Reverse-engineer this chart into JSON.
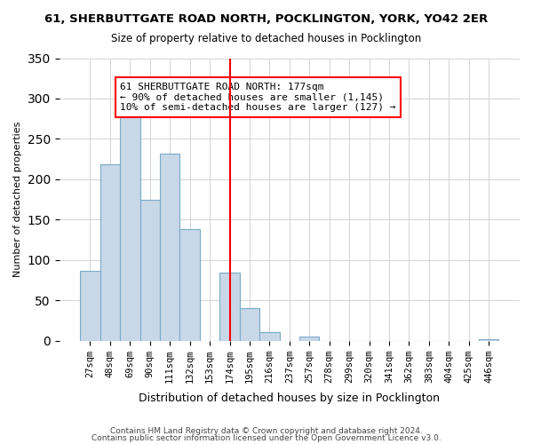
{
  "title": "61, SHERBUTTGATE ROAD NORTH, POCKLINGTON, YORK, YO42 2ER",
  "subtitle": "Size of property relative to detached houses in Pocklington",
  "xlabel": "Distribution of detached houses by size in Pocklington",
  "ylabel": "Number of detached properties",
  "bar_labels": [
    "27sqm",
    "48sqm",
    "69sqm",
    "90sqm",
    "111sqm",
    "132sqm",
    "153sqm",
    "174sqm",
    "195sqm",
    "216sqm",
    "237sqm",
    "257sqm",
    "278sqm",
    "299sqm",
    "320sqm",
    "341sqm",
    "362sqm",
    "383sqm",
    "404sqm",
    "425sqm",
    "446sqm"
  ],
  "bar_heights": [
    86,
    219,
    283,
    175,
    232,
    138,
    0,
    84,
    40,
    11,
    0,
    5,
    0,
    0,
    0,
    0,
    0,
    0,
    0,
    0,
    2
  ],
  "bar_color": "#c8d8e8",
  "bar_edge_color": "#7aaac8",
  "vline_x": 7,
  "vline_color": "red",
  "ylim": [
    0,
    350
  ],
  "annotation_line1": "61 SHERBUTTGATE ROAD NORTH: 177sqm",
  "annotation_line2": "← 90% of detached houses are smaller (1,145)",
  "annotation_line3": "10% of semi-detached houses are larger (127) →",
  "footer1": "Contains HM Land Registry data © Crown copyright and database right 2024.",
  "footer2": "Contains public sector information licensed under the Open Government Licence v3.0."
}
